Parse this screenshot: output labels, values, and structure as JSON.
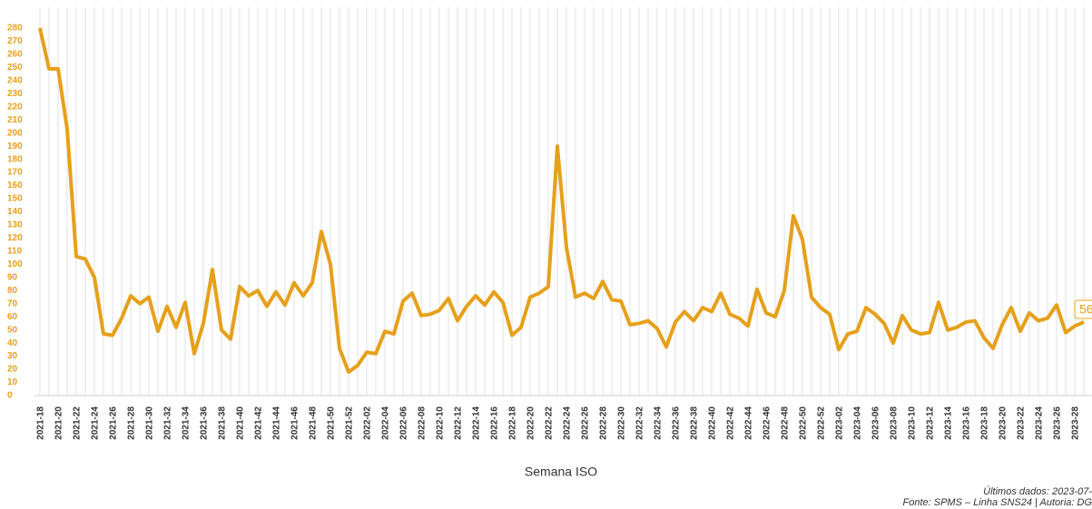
{
  "chart_data": {
    "type": "line",
    "x_label": "Semana ISO",
    "footnotes": [
      "Últimos dados: 2023-07-",
      "Fonte: SPMS – Linha SNS24 | Autoria: DG"
    ],
    "categories": [
      "2021-18",
      null,
      "2021-20",
      null,
      "2021-22",
      null,
      "2021-24",
      null,
      "2021-26",
      null,
      "2021-28",
      null,
      "2021-30",
      null,
      "2021-32",
      null,
      "2021-34",
      null,
      "2021-36",
      null,
      "2021-38",
      null,
      "2021-40",
      null,
      "2021-42",
      null,
      "2021-44",
      null,
      "2021-46",
      null,
      "2021-48",
      null,
      "2021-50",
      null,
      "2021-52",
      null,
      "2022-02",
      null,
      "2022-04",
      null,
      "2022-06",
      null,
      "2022-08",
      null,
      "2022-10",
      null,
      "2022-12",
      null,
      "2022-14",
      null,
      "2022-16",
      null,
      "2022-18",
      null,
      "2022-20",
      null,
      "2022-22",
      null,
      "2022-24",
      null,
      "2022-26",
      null,
      "2022-28",
      null,
      "2022-30",
      null,
      "2022-32",
      null,
      "2022-34",
      null,
      "2022-36",
      null,
      "2022-38",
      null,
      "2022-40",
      null,
      "2022-42",
      null,
      "2022-44",
      null,
      "2022-46",
      null,
      "2022-48",
      null,
      "2022-50",
      null,
      "2022-52",
      null,
      "2023-02",
      null,
      "2023-04",
      null,
      "2023-06",
      null,
      "2023-08",
      null,
      "2023-10",
      null,
      "2023-12",
      null,
      "2023-14",
      null,
      "2023-16",
      null,
      "2023-18",
      null,
      "2023-20",
      null,
      "2023-22",
      null,
      "2023-24",
      null,
      "2023-26",
      null,
      "2023-28",
      null
    ],
    "values": [
      280,
      249,
      249,
      203,
      106,
      104,
      90,
      47,
      46,
      59,
      76,
      70,
      75,
      49,
      68,
      52,
      71,
      32,
      55,
      96,
      50,
      43,
      83,
      76,
      80,
      68,
      79,
      69,
      86,
      76,
      86,
      125,
      100,
      36,
      18,
      23,
      33,
      32,
      49,
      47,
      72,
      78,
      61,
      62,
      65,
      74,
      57,
      68,
      76,
      69,
      79,
      71,
      46,
      52,
      75,
      78,
      83,
      190,
      113,
      75,
      78,
      74,
      87,
      73,
      72,
      54,
      55,
      57,
      51,
      37,
      56,
      64,
      57,
      67,
      64,
      78,
      62,
      59,
      53,
      81,
      63,
      60,
      80,
      137,
      119,
      75,
      67,
      62,
      35,
      47,
      49,
      67,
      62,
      55,
      40,
      61,
      50,
      47,
      48,
      71,
      50,
      52,
      56,
      57,
      44,
      36,
      54,
      67,
      49,
      63,
      57,
      59,
      69,
      48,
      53,
      56
    ],
    "color": "#e6a01c",
    "ylim": [
      0,
      280
    ],
    "yticks": [
      0,
      10,
      20,
      30,
      40,
      50,
      60,
      70,
      80,
      90,
      100,
      110,
      120,
      130,
      140,
      150,
      160,
      170,
      180,
      190,
      200,
      210,
      220,
      230,
      240,
      250,
      260,
      270,
      280
    ],
    "grid": true
  }
}
